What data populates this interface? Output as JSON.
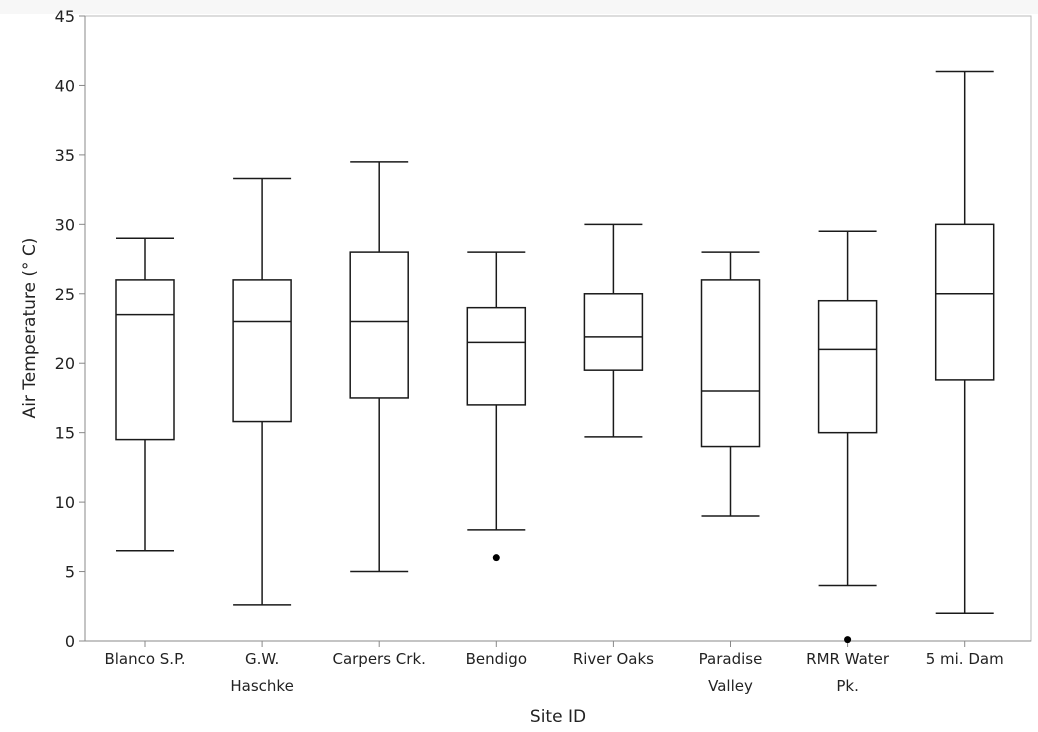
{
  "chart_data": {
    "type": "box",
    "title": "",
    "xlabel": "Site ID",
    "ylabel": "Air Temperature (° C)",
    "ylim": [
      0,
      45
    ],
    "yticks": [
      0,
      5,
      10,
      15,
      20,
      25,
      30,
      35,
      40,
      45
    ],
    "grid": false,
    "legend": "none",
    "categories": [
      {
        "label_lines": [
          "Blanco S.P."
        ],
        "whisker_low": 6.5,
        "q1": 14.5,
        "median": 23.5,
        "q3": 26.0,
        "whisker_high": 29.0,
        "outliers": []
      },
      {
        "label_lines": [
          "G.W.",
          "Haschke"
        ],
        "whisker_low": 2.6,
        "q1": 15.8,
        "median": 23.0,
        "q3": 26.0,
        "whisker_high": 33.3,
        "outliers": []
      },
      {
        "label_lines": [
          "Carpers Crk."
        ],
        "whisker_low": 5.0,
        "q1": 17.5,
        "median": 23.0,
        "q3": 28.0,
        "whisker_high": 34.5,
        "outliers": []
      },
      {
        "label_lines": [
          "Bendigo"
        ],
        "whisker_low": 8.0,
        "q1": 17.0,
        "median": 21.5,
        "q3": 24.0,
        "whisker_high": 28.0,
        "outliers": [
          6.0
        ]
      },
      {
        "label_lines": [
          "River Oaks"
        ],
        "whisker_low": 14.7,
        "q1": 19.5,
        "median": 21.9,
        "q3": 25.0,
        "whisker_high": 30.0,
        "outliers": []
      },
      {
        "label_lines": [
          "Paradise",
          "Valley"
        ],
        "whisker_low": 9.0,
        "q1": 14.0,
        "median": 18.0,
        "q3": 26.0,
        "whisker_high": 28.0,
        "outliers": []
      },
      {
        "label_lines": [
          "RMR Water",
          "Pk."
        ],
        "whisker_low": 4.0,
        "q1": 15.0,
        "median": 21.0,
        "q3": 24.5,
        "whisker_high": 29.5,
        "outliers": [
          0.1
        ]
      },
      {
        "label_lines": [
          "5 mi. Dam"
        ],
        "whisker_low": 2.0,
        "q1": 18.8,
        "median": 25.0,
        "q3": 30.0,
        "whisker_high": 41.0,
        "outliers": []
      }
    ],
    "colors": {
      "box_stroke": "#1a1a1a",
      "axis": "#888888",
      "frame": "#bbbbbb",
      "outlier": "#000000"
    }
  }
}
